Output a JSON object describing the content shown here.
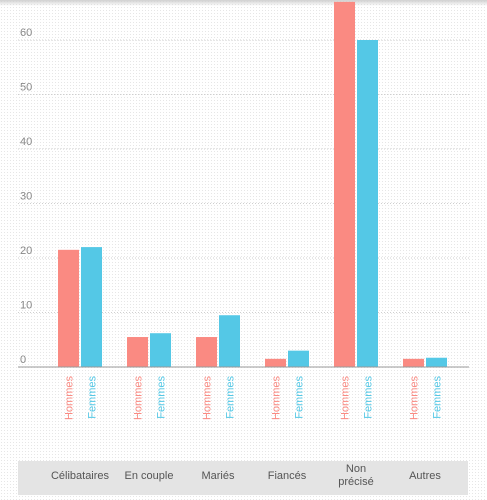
{
  "chart_data": {
    "type": "bar",
    "categories": [
      "Célibataires",
      "En couple",
      "Mariés",
      "Fiancés",
      "Non\nprécisé",
      "Autres"
    ],
    "series": [
      {
        "name": "Hommes",
        "color": "#fa8a82",
        "values": [
          21.5,
          5.5,
          5.5,
          1.5,
          67,
          1.5
        ]
      },
      {
        "name": "Femmes",
        "color": "#54c8e6",
        "values": [
          22,
          6.2,
          9.5,
          3,
          60,
          1.7
        ]
      }
    ],
    "y_ticks": [
      0,
      10,
      20,
      30,
      40,
      50,
      60
    ],
    "ylim": [
      0,
      67
    ],
    "grid": true
  }
}
